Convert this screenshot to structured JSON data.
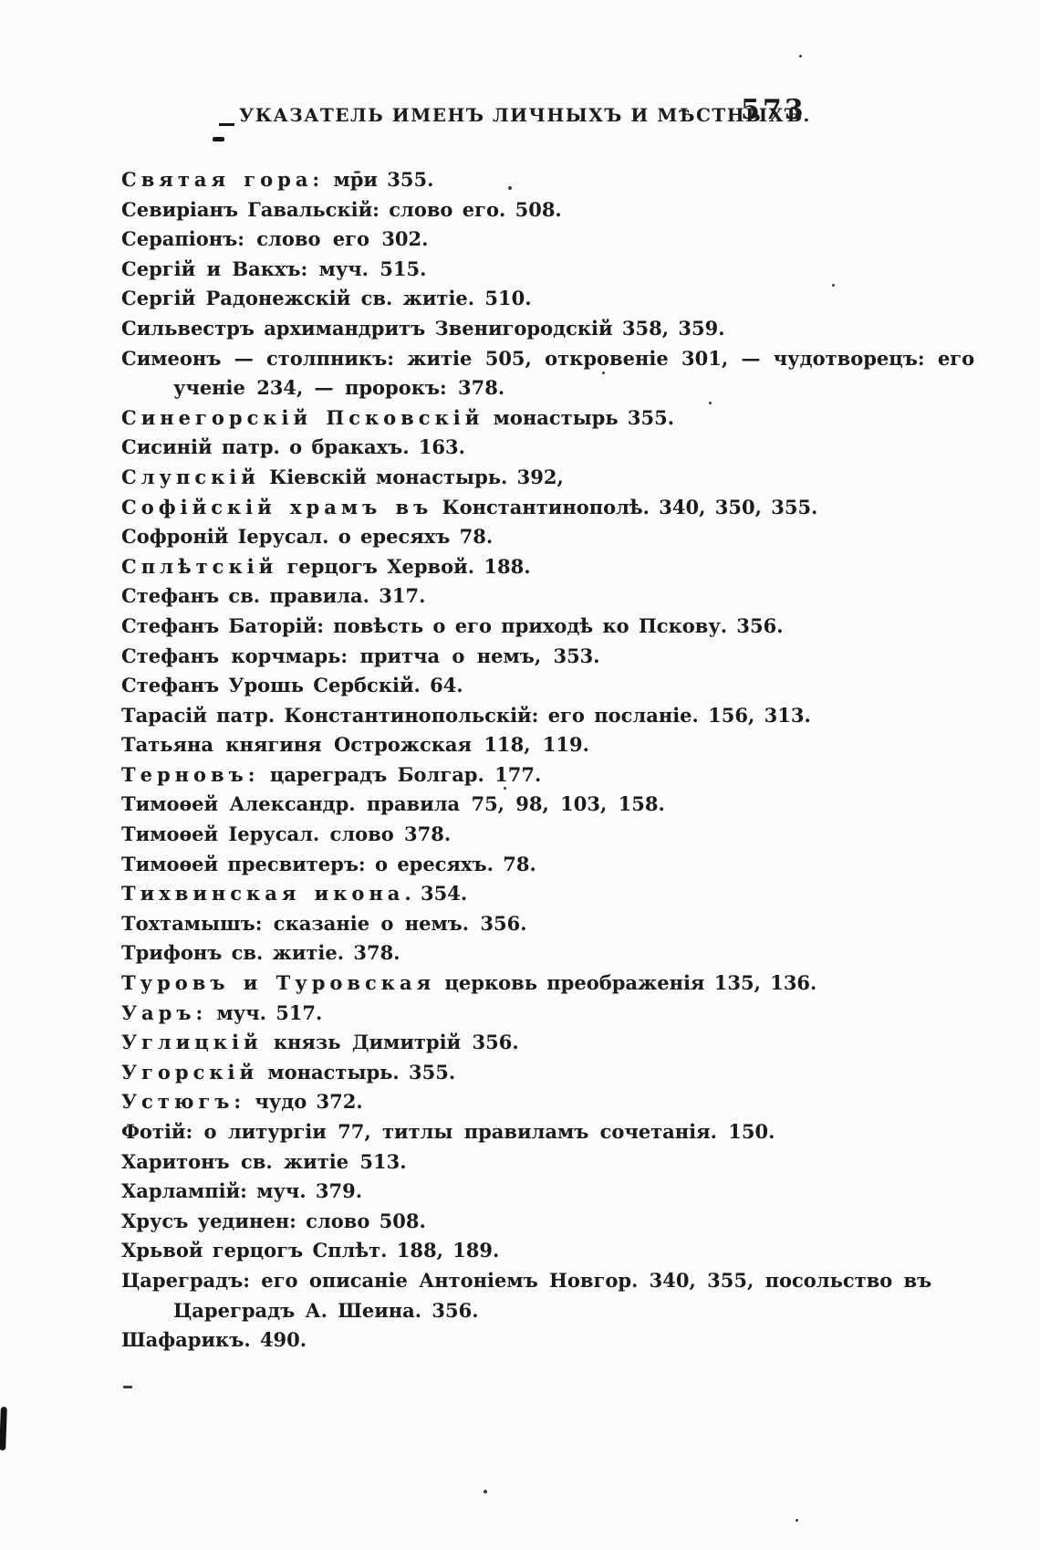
{
  "document": {
    "header": {
      "title": "УКАЗАТЕЛЬ ИМЕНЪ ЛИЧНЫХЪ И МѢСТНЫХЪ.",
      "page_number": "573"
    },
    "entries": [
      {
        "lead": "Святая гора:",
        "text": " мр̄и 355."
      },
      {
        "text": "Севиріанъ Гавальскій: слово его. 508."
      },
      {
        "text": "Серапіонъ: слово его 302.",
        "ws": 6
      },
      {
        "text": "Сергій и Вакхъ: муч. 515.",
        "ws": 5
      },
      {
        "text": "Сергій Радонежскій св. житіе. 510.",
        "ws": 4
      },
      {
        "text": "Сильвестръ архимандритъ Звенигородскій 358, 359."
      },
      {
        "text": "Симеонъ — столпникъ: житіе 505, откровеніе 301, — чудотворецъ: его",
        "ws": 7
      },
      {
        "text": "ученіе 234, — пророкъ: 378.",
        "indent": true,
        "ws": 5
      },
      {
        "lead": "Синегорскій Псковскій",
        "text": " монастырь 355."
      },
      {
        "text": "Сисиній патр. о бракахъ. 163."
      },
      {
        "lead": "Слупскій",
        "text": " Кіевскій монастырь. 392,"
      },
      {
        "lead": "Софійскій храмъ въ",
        "text": " Константинополѣ. 340, 350, 355."
      },
      {
        "text": "Софроній Іерусал. о ересяхъ 78."
      },
      {
        "lead": "Сплѣтскій",
        "text": " герцогъ Хервой. 188."
      },
      {
        "text": "Стефанъ св. правила. 317."
      },
      {
        "text": "Стефанъ Баторій: повѣсть о его приходѣ ко Пскову. 356."
      },
      {
        "text": "Стефанъ корчмарь: притча о немъ, 353.",
        "ws": 6
      },
      {
        "text": "Стефанъ Урошь Сербскій. 64."
      },
      {
        "text": "Тарасій патр. Константинопольскій: его посланіе. 156, 313."
      },
      {
        "text": "Татьяна княгиня Острожская 118, 119.",
        "ws": 6
      },
      {
        "lead": "Терновъ:",
        "text": " цареградъ Болгар. 177.",
        "ws": 4
      },
      {
        "text": "Тимоѳей Александр. правила 75, 98, 103, 158.",
        "ws": 5
      },
      {
        "text": "Тимоѳей Іерусал. слово 378.",
        "ws": 4
      },
      {
        "text": "Тимоѳей пресвитеръ: о ересяхъ. 78."
      },
      {
        "lead": "Тихвинская икона",
        "text": ". 354."
      },
      {
        "text": "Тохтамышъ: сказаніе о немъ. 356.",
        "ws": 5
      },
      {
        "text": "Трифонъ св. житіе. 378."
      },
      {
        "lead": "Туровъ и Туровская",
        "text": " церковь преображенія 135, 136."
      },
      {
        "lead": "Уаръ:",
        "text": " муч. 517."
      },
      {
        "lead": "Углицкій",
        "text": " князь Димитрій 356.",
        "ws": 5
      },
      {
        "lead": "Угорскій",
        "text": " монастырь. 355."
      },
      {
        "lead": "Устюгъ:",
        "text": " чудо 372."
      },
      {
        "text": "Фотій: о литургіи 77, титлы правиламъ сочетанія. 150.",
        "ws": 5
      },
      {
        "text": "Харитонъ св. житіе 513.",
        "ws": 5
      },
      {
        "text": "Харлампій: муч. 379."
      },
      {
        "text": "Хрусъ уединен: слово 508."
      },
      {
        "text": "Хрьвой герцогъ Сплѣт. 188, 189."
      },
      {
        "text": "Цареградъ: его описаніе Антоніемъ Новгор. 340, 355, посольство въ",
        "ws": 5
      },
      {
        "text": "Цареградъ А. Шеина. 356.",
        "indent": true,
        "ws": 4
      },
      {
        "text": "Шафарикъ. 490."
      }
    ]
  },
  "colors": {
    "ink": "#1b1b1b",
    "paper": "#fcfcfb"
  }
}
